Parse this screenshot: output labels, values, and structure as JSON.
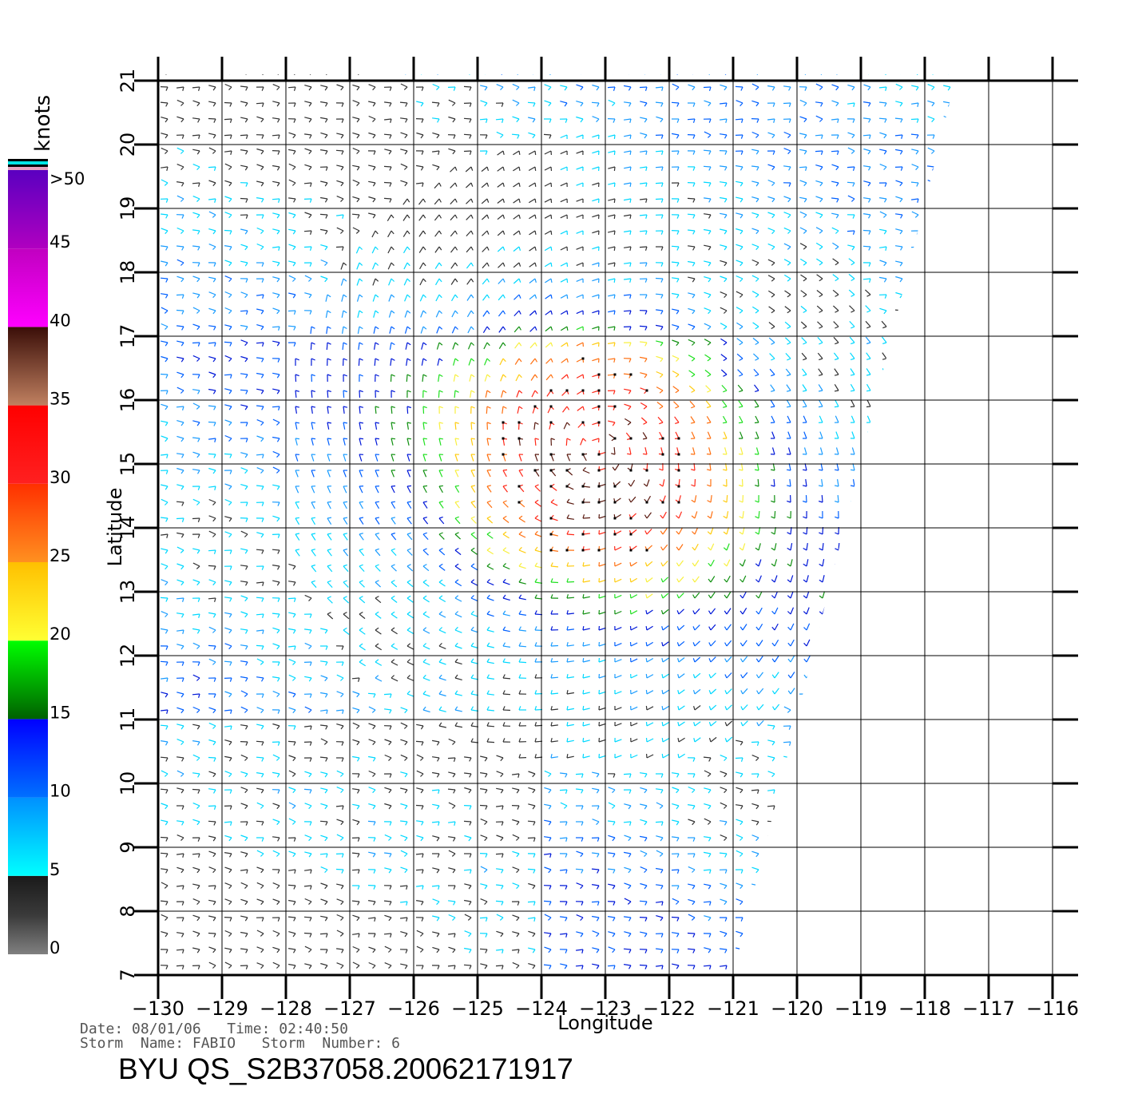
{
  "colorbar": {
    "unit_label": "knots",
    "labels": [
      ">50",
      "45",
      "40",
      "35",
      "30",
      "25",
      "20",
      "15",
      "10",
      "5",
      "0"
    ],
    "bands": [
      {
        "from": 0,
        "to": 5,
        "colors": [
          "#808080",
          "#3a3a3a",
          "#1a1a1a"
        ]
      },
      {
        "from": 5,
        "to": 10,
        "colors": [
          "#00ffff",
          "#0090ff"
        ]
      },
      {
        "from": 10,
        "to": 15,
        "colors": [
          "#0070ff",
          "#0000ff"
        ]
      },
      {
        "from": 15,
        "to": 20,
        "colors": [
          "#006000",
          "#00ff00"
        ]
      },
      {
        "from": 20,
        "to": 25,
        "colors": [
          "#ffff33",
          "#ffc000"
        ]
      },
      {
        "from": 25,
        "to": 30,
        "colors": [
          "#ff9020",
          "#ff3000"
        ]
      },
      {
        "from": 30,
        "to": 35,
        "colors": [
          "#ff2020",
          "#ff0000"
        ]
      },
      {
        "from": 35,
        "to": 40,
        "colors": [
          "#c08060",
          "#3a0e08"
        ]
      },
      {
        "from": 40,
        "to": 45,
        "colors": [
          "#ff00ff",
          "#c000c0"
        ]
      },
      {
        "from": 45,
        "to": 50,
        "colors": [
          "#b000c0",
          "#5a00c0"
        ]
      }
    ]
  },
  "map": {
    "xlabel": "Longitude",
    "ylabel": "Latitude",
    "lon_range": [
      -130,
      -116
    ],
    "lat_range": [
      7,
      21
    ],
    "lon_ticks": [
      "−130",
      "−129",
      "−128",
      "−127",
      "−126",
      "−125",
      "−124",
      "−123",
      "−122",
      "−121",
      "−120",
      "−119",
      "−118",
      "−117",
      "−116"
    ],
    "lat_ticks": [
      "7",
      "8",
      "9",
      "10",
      "11",
      "12",
      "13",
      "14",
      "15",
      "16",
      "17",
      "18",
      "19",
      "20",
      "21"
    ],
    "grid": true,
    "swath_lon_lat": [
      [
        -130,
        7
      ],
      [
        -121,
        7
      ],
      [
        -117.5,
        21.1
      ],
      [
        -130,
        21.1
      ]
    ],
    "vector_style": "wind barbs",
    "storm_center_lon_lat": [
      -123.1,
      15.2
    ]
  },
  "info": {
    "date_line": "Date: 08/01/06   Time: 02:40:50",
    "storm_line": "Storm  Name: FABIO   Storm  Number: 6"
  },
  "product_id": "BYU  QS_S2B37058.20062171917",
  "colors": {
    "grid": "#000000",
    "background": "#ffffff"
  }
}
